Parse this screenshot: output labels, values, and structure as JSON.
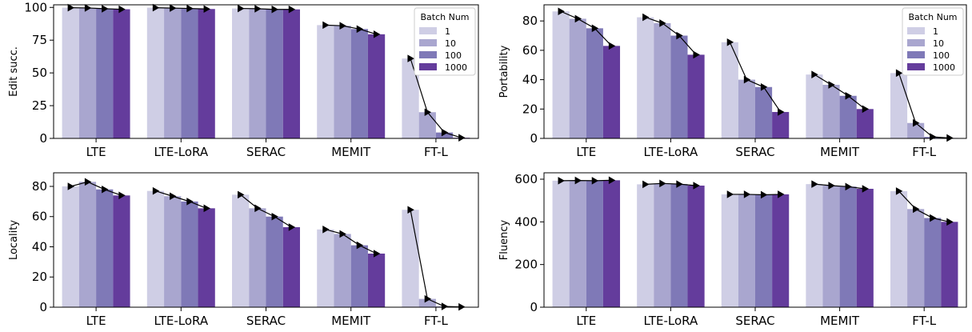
{
  "chart_data": [
    {
      "type": "bar",
      "categories": [
        "LTE",
        "LTE-LoRA",
        "SERAC",
        "MEMIT",
        "FT-L"
      ],
      "ylabel": "Edit succ.",
      "ylim": [
        0,
        102
      ],
      "yticks": [
        0,
        25,
        50,
        75,
        100
      ],
      "legend_title": "Batch Num",
      "legend_placement": "top-right",
      "series": [
        {
          "name": "1",
          "values": [
            99.8,
            99.8,
            99.2,
            86.5,
            61.0
          ]
        },
        {
          "name": "10",
          "values": [
            99.6,
            99.5,
            99.0,
            86.0,
            20.0
          ]
        },
        {
          "name": "100",
          "values": [
            99.0,
            99.2,
            98.5,
            83.5,
            4.5
          ]
        },
        {
          "name": "1000",
          "values": [
            98.6,
            98.8,
            98.5,
            79.5,
            0.5
          ]
        }
      ]
    },
    {
      "type": "bar",
      "categories": [
        "LTE",
        "LTE-LoRA",
        "SERAC",
        "MEMIT",
        "FT-L"
      ],
      "ylabel": "Portability",
      "ylim": [
        0,
        91
      ],
      "yticks": [
        0,
        20,
        40,
        60,
        80
      ],
      "legend_title": "Batch Num",
      "legend_placement": "top-right",
      "series": [
        {
          "name": "1",
          "values": [
            86.5,
            82.5,
            65.5,
            43.5,
            44.5
          ]
        },
        {
          "name": "10",
          "values": [
            81.5,
            78.5,
            40.0,
            36.5,
            10.5
          ]
        },
        {
          "name": "100",
          "values": [
            75.0,
            70.0,
            35.0,
            29.0,
            1.0
          ]
        },
        {
          "name": "1000",
          "values": [
            63.0,
            57.0,
            18.0,
            20.0,
            0.3
          ]
        }
      ]
    },
    {
      "type": "bar",
      "categories": [
        "LTE",
        "LTE-LoRA",
        "SERAC",
        "MEMIT",
        "FT-L"
      ],
      "ylabel": "Locality",
      "ylim": [
        0,
        89
      ],
      "yticks": [
        0,
        20,
        40,
        60,
        80
      ],
      "series": [
        {
          "name": "1",
          "values": [
            80.0,
            77.0,
            74.5,
            51.5,
            64.5
          ]
        },
        {
          "name": "10",
          "values": [
            83.0,
            73.5,
            65.5,
            48.5,
            5.5
          ]
        },
        {
          "name": "100",
          "values": [
            78.0,
            70.0,
            60.0,
            41.0,
            0.5
          ]
        },
        {
          "name": "1000",
          "values": [
            74.0,
            65.5,
            53.0,
            35.5,
            0.2
          ]
        }
      ]
    },
    {
      "type": "bar",
      "categories": [
        "LTE",
        "LTE-LoRA",
        "SERAC",
        "MEMIT",
        "FT-L"
      ],
      "ylabel": "Fluency",
      "ylim": [
        0,
        630
      ],
      "yticks": [
        0,
        200,
        400,
        600
      ],
      "series": [
        {
          "name": "1",
          "values": [
            593,
            576,
            529,
            577,
            544
          ]
        },
        {
          "name": "10",
          "values": [
            594,
            580,
            529,
            570,
            460
          ]
        },
        {
          "name": "100",
          "values": [
            593,
            577,
            527,
            565,
            418
          ]
        },
        {
          "name": "1000",
          "values": [
            595,
            570,
            529,
            555,
            400
          ]
        }
      ]
    }
  ],
  "colors": {
    "series": [
      "#cfcee5",
      "#a9a6cf",
      "#7f79b7",
      "#643c9c"
    ],
    "marker_line": "#000000",
    "axis": "#000000",
    "legend_border": "#cccccc"
  }
}
